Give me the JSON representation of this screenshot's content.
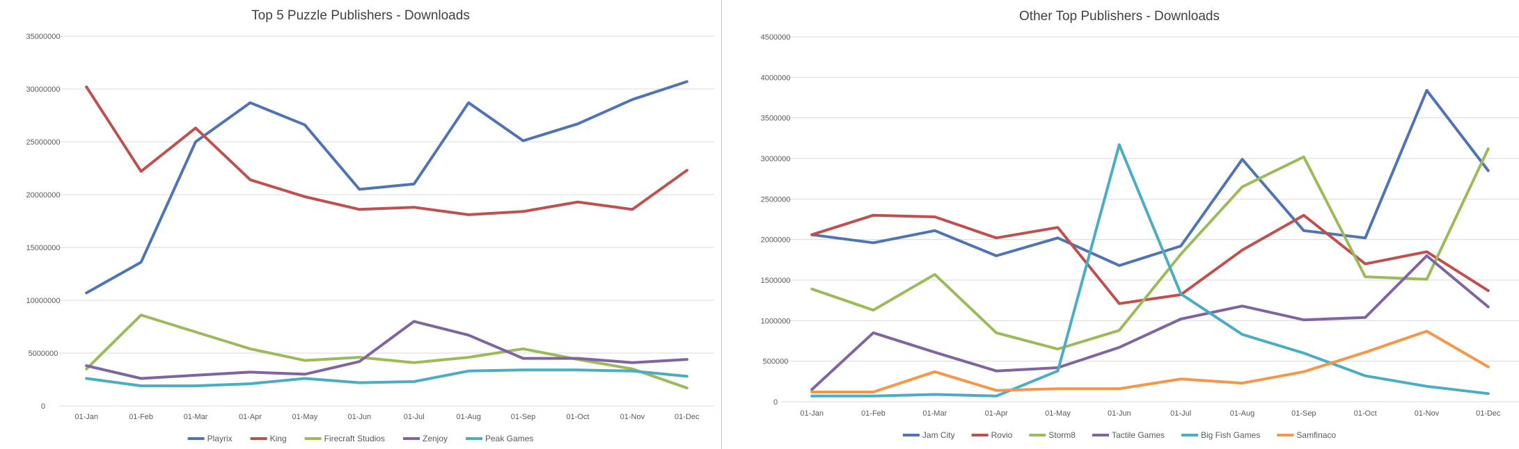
{
  "chart_data": [
    {
      "type": "line",
      "title": "Top 5 Puzzle Publishers - Downloads",
      "xlabel": "",
      "ylabel": "",
      "ylim": [
        0,
        35000000
      ],
      "y_ticks": [
        0,
        5000000,
        10000000,
        15000000,
        20000000,
        25000000,
        30000000,
        35000000
      ],
      "grid": true,
      "legend_position": "bottom",
      "categories": [
        "01-Jan",
        "01-Feb",
        "01-Mar",
        "01-Apr",
        "01-May",
        "01-Jun",
        "01-Jul",
        "01-Aug",
        "01-Sep",
        "01-Oct",
        "01-Nov",
        "01-Dec"
      ],
      "series": [
        {
          "name": "Playrix",
          "color": "#4f74b5",
          "values": [
            10700000,
            13600000,
            25000000,
            28700000,
            26600000,
            20500000,
            21000000,
            28700000,
            25100000,
            26700000,
            29000000,
            30700000
          ]
        },
        {
          "name": "King",
          "color": "#c0504d",
          "values": [
            30200000,
            22200000,
            26300000,
            21400000,
            19800000,
            18600000,
            18800000,
            18100000,
            18400000,
            19300000,
            18600000,
            22300000
          ]
        },
        {
          "name": "Firecraft Studios",
          "color": "#9bbb59",
          "values": [
            3500000,
            8600000,
            7000000,
            5400000,
            4300000,
            4600000,
            4100000,
            4600000,
            5400000,
            4400000,
            3500000,
            1700000
          ]
        },
        {
          "name": "Zenjoy",
          "color": "#8064a2",
          "values": [
            3800000,
            2600000,
            2900000,
            3200000,
            3000000,
            4200000,
            8000000,
            6700000,
            4500000,
            4500000,
            4100000,
            4400000
          ]
        },
        {
          "name": "Peak Games",
          "color": "#4bacc6",
          "values": [
            2600000,
            1900000,
            1900000,
            2100000,
            2600000,
            2200000,
            2300000,
            3300000,
            3400000,
            3400000,
            3300000,
            2800000
          ]
        }
      ]
    },
    {
      "type": "line",
      "title": "Other Top Publishers - Downloads",
      "xlabel": "",
      "ylabel": "",
      "ylim": [
        0,
        4500000
      ],
      "y_ticks": [
        0,
        500000,
        1000000,
        1500000,
        2000000,
        2500000,
        3000000,
        3500000,
        4000000,
        4500000
      ],
      "grid": true,
      "legend_position": "bottom",
      "categories": [
        "01-Jan",
        "01-Feb",
        "01-Mar",
        "01-Apr",
        "01-May",
        "01-Jun",
        "01-Jul",
        "01-Aug",
        "01-Sep",
        "01-Oct",
        "01-Nov",
        "01-Dec"
      ],
      "series": [
        {
          "name": "Jam City",
          "color": "#4f74b5",
          "values": [
            2060000,
            1960000,
            2110000,
            1800000,
            2020000,
            1680000,
            1920000,
            2990000,
            2110000,
            2020000,
            3840000,
            2850000
          ]
        },
        {
          "name": "Rovio",
          "color": "#c0504d",
          "values": [
            2060000,
            2300000,
            2280000,
            2020000,
            2150000,
            1210000,
            1320000,
            1870000,
            2300000,
            1700000,
            1850000,
            1370000
          ]
        },
        {
          "name": "Storm8",
          "color": "#9bbb59",
          "values": [
            1390000,
            1130000,
            1570000,
            850000,
            650000,
            880000,
            1820000,
            2650000,
            3020000,
            1540000,
            1510000,
            3120000
          ]
        },
        {
          "name": "Tactile Games",
          "color": "#8064a2",
          "values": [
            150000,
            850000,
            610000,
            380000,
            420000,
            670000,
            1020000,
            1180000,
            1010000,
            1040000,
            1800000,
            1170000
          ]
        },
        {
          "name": "Big Fish Games",
          "color": "#4bacc6",
          "values": [
            70000,
            70000,
            90000,
            70000,
            380000,
            3170000,
            1330000,
            830000,
            600000,
            320000,
            190000,
            100000
          ]
        },
        {
          "name": "Samfinaco",
          "color": "#f79646",
          "values": [
            120000,
            120000,
            370000,
            140000,
            160000,
            160000,
            280000,
            230000,
            370000,
            610000,
            870000,
            430000
          ]
        }
      ]
    }
  ]
}
